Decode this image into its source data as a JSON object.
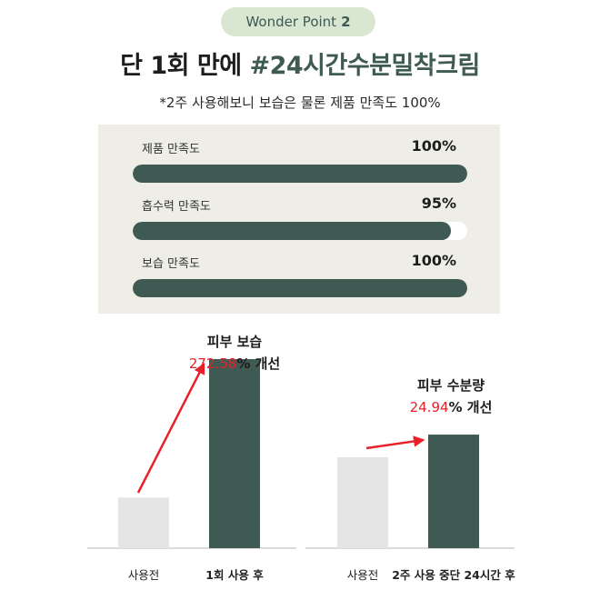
{
  "badge": {
    "text": "Wonder Point",
    "number": "2"
  },
  "headline": {
    "prefix": "단 1회 만에 ",
    "accent": "#24시간수분밀착크림"
  },
  "subline": "*2주 사용해보니 보습은 물론 제품 만족도 100%",
  "colors": {
    "dark_green": "#3e5a52",
    "light_gray": "#e5e5e5",
    "accent_red": "#e8202a",
    "panel": "#eeeee6",
    "badge": "#d9e6d2"
  },
  "satisfaction": [
    {
      "label": "제품 만족도",
      "value_text": "100%",
      "percent": 100
    },
    {
      "label": "흡수력 만족도",
      "value_text": "95%",
      "percent": 95
    },
    {
      "label": "보습 만족도",
      "value_text": "100%",
      "percent": 100
    }
  ],
  "chart_data": [
    {
      "type": "bar",
      "title": "피부 보습",
      "improvement_value": "272.58",
      "improvement_suffix": "% 개선",
      "categories": [
        "사용전",
        "1회 사용 후"
      ],
      "values": [
        1,
        3.7258
      ],
      "ylim": [
        0,
        4.3
      ],
      "colors": [
        "#e5e5e5",
        "#3e5a52"
      ]
    },
    {
      "type": "bar",
      "title": "피부 수분량",
      "improvement_value": "24.94",
      "improvement_suffix": "% 개선",
      "categories": [
        "사용전",
        "2주 사용 중단 24시간 후"
      ],
      "values": [
        1,
        1.2494
      ],
      "ylim": [
        0,
        2.4
      ],
      "colors": [
        "#e5e5e5",
        "#3e5a52"
      ]
    }
  ]
}
